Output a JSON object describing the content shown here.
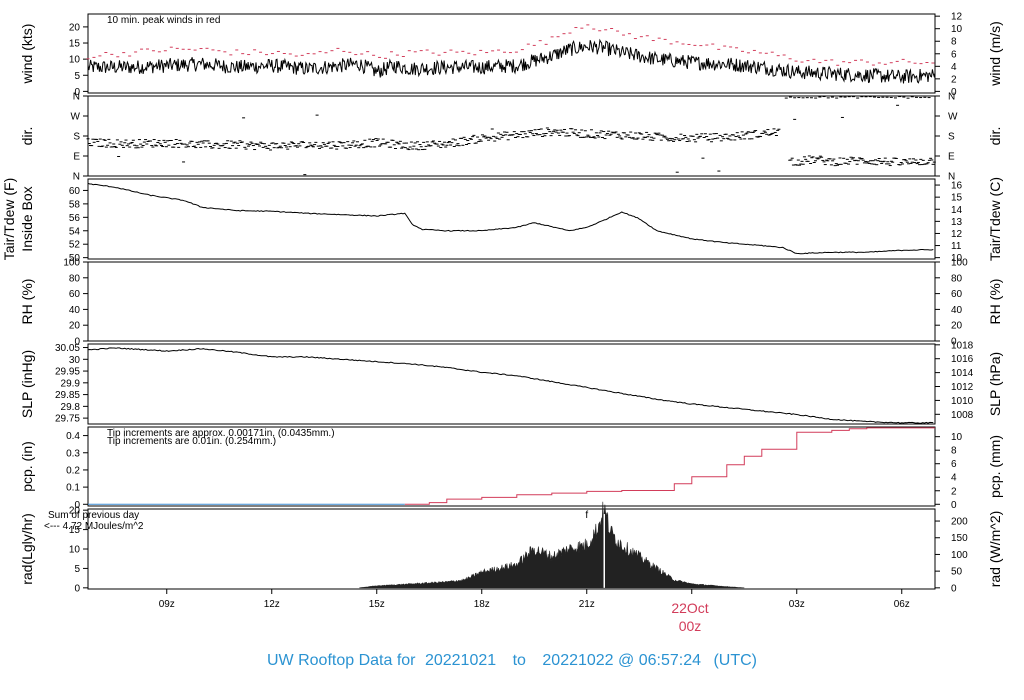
{
  "footer": {
    "prefix": "UW Rooftop Data for",
    "start": "20221021",
    "to": "to",
    "end": "20221022 @ 06:57:24",
    "tz": "(UTC)"
  },
  "date_marker": {
    "day": "22Oct",
    "hour": "00z"
  },
  "colors": {
    "peak": "#d23c5a",
    "pcp_red": "#d23c5a",
    "pcp_blue": "#3c8cd2",
    "sum_note": "#9932cc",
    "line": "#000000",
    "footer": "#2b93d2"
  },
  "chart_data": {
    "type": "line",
    "x_axis": {
      "unit": "UTC hour",
      "range": [
        6.75,
        30.95
      ],
      "ticks": [
        9,
        12,
        15,
        18,
        21,
        24,
        27,
        30
      ],
      "tick_labels": [
        "09z",
        "12z",
        "15z",
        "18z",
        "21z",
        "",
        "03z",
        "06z"
      ]
    },
    "panels": [
      {
        "id": "wind",
        "ylabel_left": "wind (kts)",
        "ylabel_right": "wind (m/s)",
        "ylim": [
          -0.5,
          24
        ],
        "left_ticks": [
          0,
          5,
          10,
          15,
          20
        ],
        "right_ticks": [
          0,
          2,
          4,
          6,
          8,
          10,
          12
        ],
        "right_scale": 0.5144,
        "annotation": "10 min. peak winds in red",
        "series": [
          {
            "name": "wind",
            "x": [
              6.75,
              8,
              9,
              10,
              11,
              12,
              13,
              14,
              14.5,
              15,
              15.5,
              16,
              17,
              18,
              19,
              19.5,
              20,
              20.5,
              21,
              21.5,
              22,
              22.5,
              23,
              24,
              25,
              26,
              27,
              28,
              29,
              30,
              30.95
            ],
            "y": [
              7.5,
              7.5,
              8,
              8.5,
              7.5,
              8,
              7,
              8,
              8.5,
              6,
              8,
              7,
              7.5,
              7.5,
              8,
              9.5,
              11,
              13,
              14,
              13.5,
              12,
              11,
              10,
              9,
              8.5,
              7.5,
              6,
              5.5,
              5,
              4.5,
              5
            ]
          },
          {
            "name": "peak",
            "x": [
              6.75,
              8,
              9,
              10,
              11,
              12,
              13,
              14,
              15,
              16,
              17,
              18,
              19,
              20,
              20.5,
              21,
              21.5,
              22,
              23,
              24,
              25,
              26,
              27,
              28,
              29,
              30,
              30.95
            ],
            "y": [
              11,
              12,
              13,
              13,
              12,
              12,
              11,
              13,
              11,
              12,
              12,
              12,
              13,
              16,
              19,
              21,
              19,
              18,
              16,
              15,
              13,
              12,
              10,
              9,
              9,
              9,
              9
            ]
          }
        ]
      },
      {
        "id": "dir",
        "ylabel_left": "dir.",
        "ylabel_right": "dir.",
        "ylim": [
          0,
          360
        ],
        "left_ticks": [
          0,
          90,
          180,
          270,
          360
        ],
        "left_tick_labels": [
          "N",
          "E",
          "S",
          "W",
          "N"
        ],
        "series": [
          {
            "name": "dir_main",
            "x": [
              6.75,
              8,
              9,
              10,
              11,
              12,
              13,
              14,
              15,
              16,
              17,
              18,
              19,
              20,
              21,
              22,
              23,
              24,
              25,
              26,
              26.5
            ],
            "y": [
              150,
              145,
              150,
              140,
              140,
              135,
              140,
              140,
              150,
              135,
              145,
              170,
              185,
              200,
              190,
              185,
              175,
              170,
              175,
              190,
              200
            ]
          },
          {
            "name": "dir_late",
            "x": [
              26.8,
              27.5,
              28,
              29,
              30,
              30.95
            ],
            "y": [
              60,
              75,
              65,
              70,
              60,
              70
            ]
          }
        ]
      },
      {
        "id": "temp",
        "ylabel_left": "Tair/Tdew (F)",
        "ylabel_left2": "Inside Box",
        "ylabel_right": "Tair/Tdew (C)",
        "ylim": [
          49.8,
          61.7
        ],
        "left_ticks": [
          50,
          52,
          54,
          56,
          58,
          60
        ],
        "right_ticks": [
          10,
          11,
          12,
          13,
          14,
          15,
          16
        ],
        "series": [
          {
            "name": "tair",
            "x": [
              6.75,
              7.5,
              8.5,
              9.5,
              10,
              11,
              12,
              13,
              14,
              15,
              15.8,
              16,
              16.3,
              17,
              18,
              19,
              19.5,
              20,
              20.5,
              21,
              21.5,
              22,
              22.5,
              23,
              24,
              25,
              26,
              26.6,
              27,
              28,
              29,
              30,
              30.95
            ],
            "y": [
              61,
              60.5,
              59.3,
              58.5,
              57.5,
              57,
              56.9,
              56.6,
              56.4,
              56.2,
              56.6,
              55,
              54.2,
              54,
              54,
              54.5,
              55.2,
              54.6,
              54,
              54.5,
              55.6,
              56.8,
              55.8,
              54,
              52.8,
              52.2,
              51.8,
              51.5,
              50.6,
              50.8,
              50.8,
              51.1,
              51.2
            ]
          }
        ]
      },
      {
        "id": "rh",
        "ylabel_left": "RH (%)",
        "ylabel_right": "RH (%)",
        "ylim": [
          0,
          100
        ],
        "left_ticks": [
          0,
          20,
          40,
          60,
          80,
          100
        ],
        "right_ticks": [
          0,
          20,
          40,
          60,
          80,
          100
        ],
        "series": []
      },
      {
        "id": "slp",
        "ylabel_left": "SLP (inHg)",
        "ylabel_right": "SLP (hPa)",
        "ylim": [
          29.725,
          30.065
        ],
        "left_ticks": [
          29.75,
          29.8,
          29.85,
          29.9,
          29.95,
          30,
          30.05
        ],
        "right_ticks": [
          1008,
          1010,
          1012,
          1014,
          1016,
          1018
        ],
        "series": [
          {
            "name": "slp",
            "x": [
              6.75,
              7.5,
              8.5,
              9,
              10,
              11,
              12,
              13,
              14,
              15,
              16,
              17,
              18,
              19,
              20,
              21,
              22,
              23,
              24,
              25,
              26,
              27,
              28,
              29,
              30,
              30.95
            ],
            "y": [
              30.04,
              30.048,
              30.04,
              30.035,
              30.045,
              30.03,
              30.01,
              30.01,
              30.0,
              29.99,
              29.98,
              29.965,
              29.945,
              29.93,
              29.905,
              29.88,
              29.855,
              29.83,
              29.81,
              29.795,
              29.78,
              29.765,
              29.745,
              29.735,
              29.73,
              29.73
            ]
          }
        ]
      },
      {
        "id": "pcp",
        "ylabel_left": "pcp. (in)",
        "ylabel_right": "pcp. (mm)",
        "ylim": [
          -0.01,
          0.45
        ],
        "left_ticks": [
          0,
          0.1,
          0.2,
          0.3,
          0.4
        ],
        "right_ticks": [
          0,
          2,
          4,
          6,
          8,
          10
        ],
        "notes": [
          "Tip increments are approx. 0.00171in. (0.0435mm.)",
          "Tip increments are 0.01in. (0.254mm.)"
        ],
        "series": [
          {
            "name": "pcp_blue",
            "x": [
              6.75,
              15.8
            ],
            "y": [
              0,
              0
            ]
          },
          {
            "name": "pcp_red",
            "x": [
              15.8,
              16.5,
              17,
              18,
              19,
              20,
              21,
              22,
              23,
              23.5,
              24,
              25,
              25.5,
              26,
              27,
              28,
              28.5,
              29,
              30,
              30.95
            ],
            "y": [
              0,
              0.01,
              0.03,
              0.04,
              0.055,
              0.065,
              0.075,
              0.08,
              0.08,
              0.12,
              0.16,
              0.23,
              0.28,
              0.32,
              0.42,
              0.43,
              0.44,
              0.445,
              0.445,
              0.445
            ]
          }
        ]
      },
      {
        "id": "rad",
        "ylabel_left": "rad(Lgly/hr)",
        "ylabel_right": "rad (W/m^2)",
        "ylim": [
          -0.3,
          20.3
        ],
        "left_ticks": [
          0,
          5,
          10,
          15,
          20
        ],
        "right_ticks": [
          0,
          50,
          100,
          150,
          200
        ],
        "notes": [
          "Sum of previous day",
          "<--- 4.72 MJoules/m^2"
        ],
        "marker": "f",
        "series": [
          {
            "name": "rad",
            "x": [
              14.5,
              15,
              16,
              17,
              17.5,
              18,
              18.5,
              19,
              19.5,
              20,
              20.5,
              21,
              21.3,
              21.5,
              21.7,
              22,
              22.5,
              23,
              23.5,
              24,
              25,
              25.5
            ],
            "y": [
              0,
              0.5,
              1,
              1.5,
              2,
              4,
              5,
              6,
              10,
              8,
              10,
              11,
              15,
              20,
              14,
              11,
              8,
              5,
              2,
              1,
              0.3,
              0
            ]
          }
        ]
      }
    ]
  }
}
